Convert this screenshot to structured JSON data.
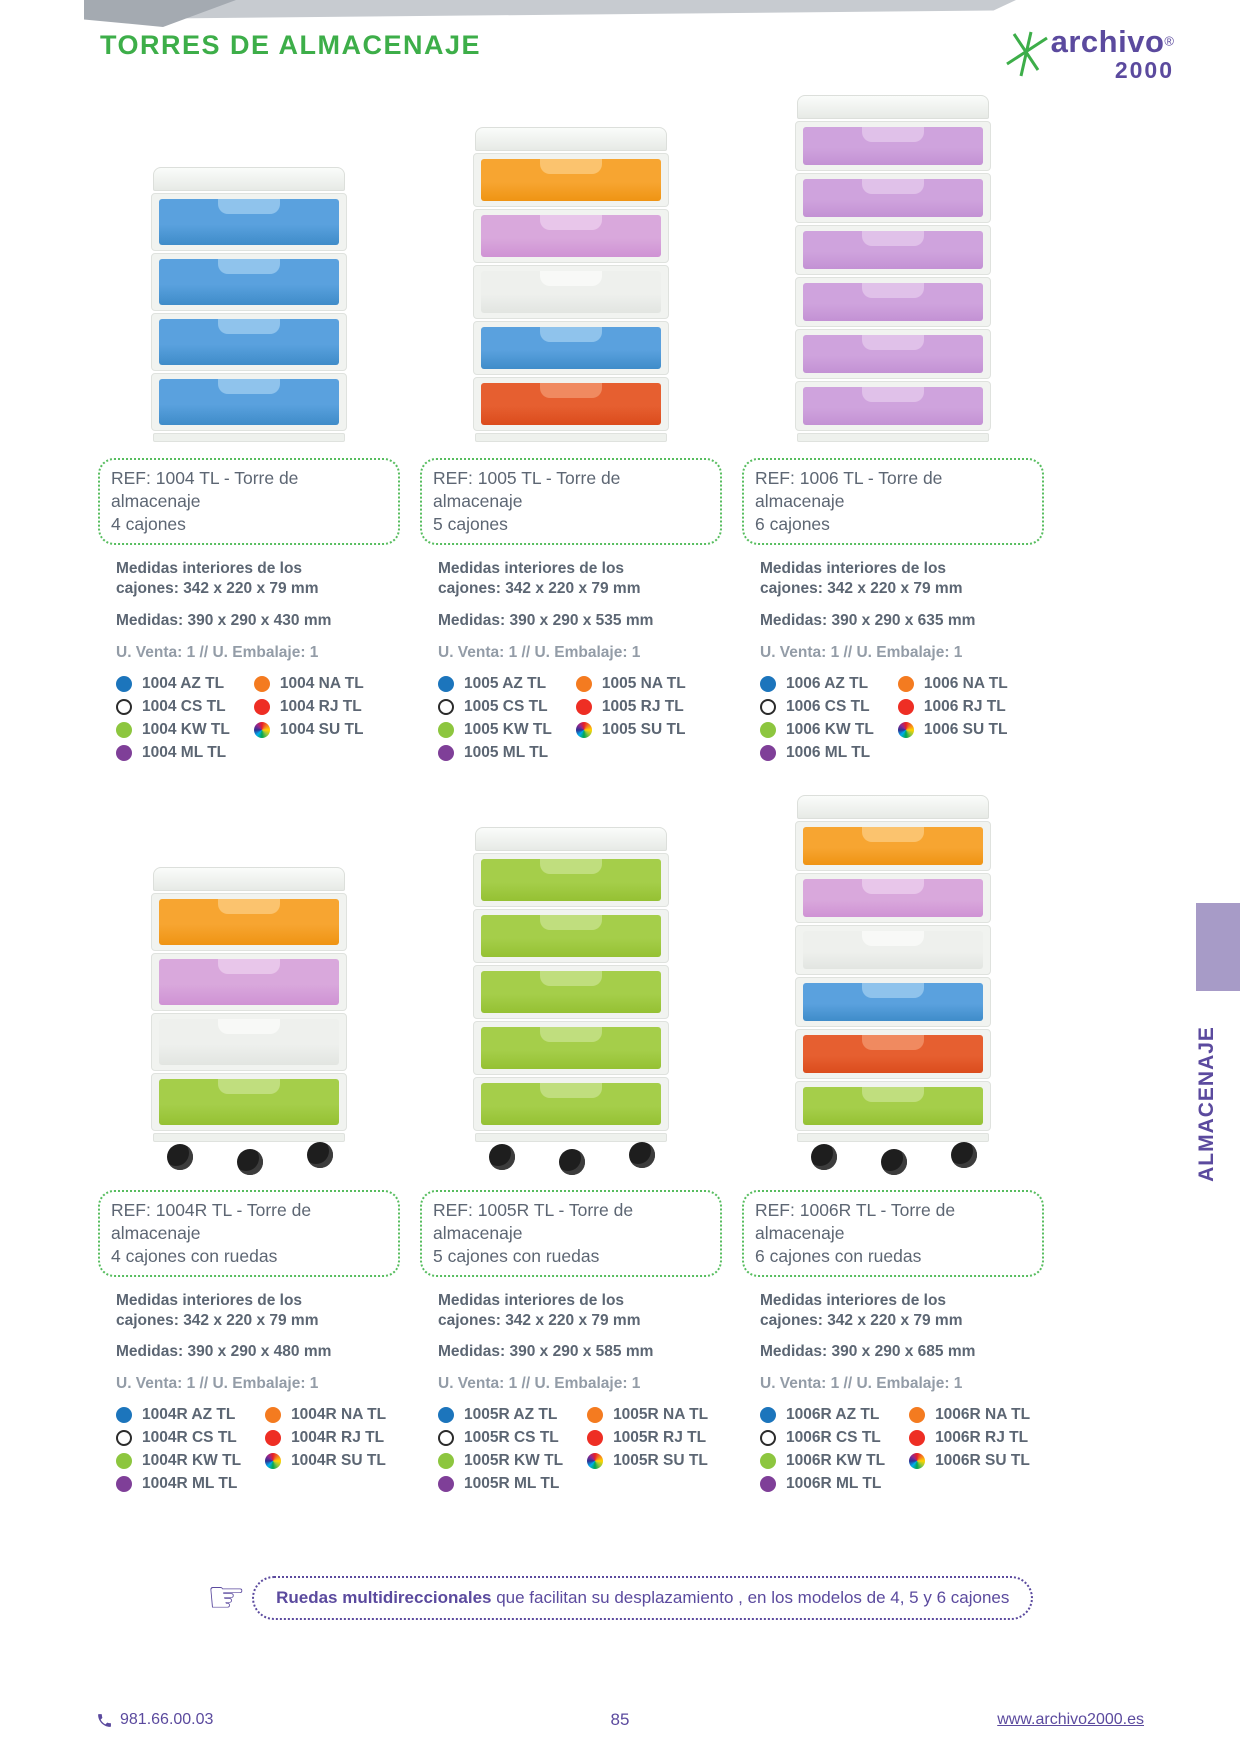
{
  "header": {
    "title": "TORRES DE ALMACENAJE",
    "logo": {
      "brand": "archivo",
      "reg": "®",
      "year": "2000"
    }
  },
  "sidebar": {
    "label": "ALMACENAJE",
    "tab_color": "#a79bc7"
  },
  "banner": {
    "bold": "Ruedas multidireccionales",
    "rest": " que facilitan su desplazamiento , en los modelos de 4, 5 y 6 cajones"
  },
  "footer": {
    "phone": "981.66.00.03",
    "page_number": "85",
    "website": "www.archivo2000.es"
  },
  "colors": {
    "accent_green": "#3dae49",
    "dotted_green": "#57bd5f",
    "brand_purple": "#5b4a9e",
    "text_slate": "#5c6673",
    "text_gray": "#939ca7",
    "tab_purple": "#a79bc7"
  },
  "swatch_colors": {
    "az": "#1c75bc",
    "cs": "outline",
    "kw": "#8dc63f",
    "ml": "#7f3f98",
    "na": "#f47b20",
    "rj": "#ee2e24",
    "su": "rainbow"
  },
  "palette": {
    "blue": {
      "main": "#5aa1de",
      "dark": "#3f8cc9",
      "handle": "#8fc3ec"
    },
    "orange": {
      "main": "#f7a531",
      "dark": "#ef9413",
      "handle": "#fbc36e"
    },
    "pink": {
      "main": "#d9a8dc",
      "dark": "#cf92d4",
      "handle": "#e8c6ea"
    },
    "clear": {
      "main": "#eef0ed",
      "dark": "#e2e5e1",
      "handle": "#f8f9f7"
    },
    "red": {
      "main": "#e65f30",
      "dark": "#db4c1d",
      "handle": "#f08a60"
    },
    "lilac": {
      "main": "#cfa3dd",
      "dark": "#c391d4",
      "handle": "#e0c1e9"
    },
    "green": {
      "main": "#a5ce4a",
      "dark": "#95c133",
      "handle": "#c0de7e"
    }
  },
  "products": [
    {
      "ref_line1": "REF: 1004 TL - Torre de almacenaje",
      "ref_line2": "4 cajones",
      "inner_line1": "Medidas interiores de los",
      "inner_line2": "cajones: 342 x 220 x 79 mm",
      "outer": "Medidas: 390 x 290 x 430 mm",
      "units": "U. Venta: 1   //   U. Embalaje: 1",
      "swatches_left": [
        {
          "code": "1004 AZ TL",
          "type": "az"
        },
        {
          "code": "1004 CS TL",
          "type": "cs"
        },
        {
          "code": "1004 KW TL",
          "type": "kw"
        },
        {
          "code": "1004 ML TL",
          "type": "ml"
        }
      ],
      "swatches_right": [
        {
          "code": "1004 NA TL",
          "type": "na"
        },
        {
          "code": "1004 RJ TL",
          "type": "rj"
        },
        {
          "code": "1004 SU TL",
          "type": "su"
        }
      ],
      "drawers": [
        "blue",
        "blue",
        "blue",
        "blue"
      ],
      "wheels": false
    },
    {
      "ref_line1": "REF: 1005 TL - Torre de almacenaje",
      "ref_line2": "5 cajones",
      "inner_line1": "Medidas interiores de los",
      "inner_line2": "cajones: 342 x 220 x 79 mm",
      "outer": "Medidas: 390 x 290 x 535 mm",
      "units": "U. Venta: 1   //   U. Embalaje: 1",
      "swatches_left": [
        {
          "code": "1005 AZ TL",
          "type": "az"
        },
        {
          "code": "1005 CS TL",
          "type": "cs"
        },
        {
          "code": "1005 KW TL",
          "type": "kw"
        },
        {
          "code": "1005 ML TL",
          "type": "ml"
        }
      ],
      "swatches_right": [
        {
          "code": "1005 NA TL",
          "type": "na"
        },
        {
          "code": "1005 RJ TL",
          "type": "rj"
        },
        {
          "code": "1005 SU TL",
          "type": "su"
        }
      ],
      "drawers": [
        "orange",
        "pink",
        "clear",
        "blue",
        "red"
      ],
      "wheels": false
    },
    {
      "ref_line1": "REF: 1006 TL - Torre de almacenaje",
      "ref_line2": "6 cajones",
      "inner_line1": "Medidas interiores de los",
      "inner_line2": "cajones: 342 x 220 x 79 mm",
      "outer": "Medidas: 390 x 290 x 635 mm",
      "units": "U. Venta: 1   //   U. Embalaje: 1",
      "swatches_left": [
        {
          "code": "1006 AZ TL",
          "type": "az"
        },
        {
          "code": "1006 CS TL",
          "type": "cs"
        },
        {
          "code": "1006 KW TL",
          "type": "kw"
        },
        {
          "code": "1006 ML TL",
          "type": "ml"
        }
      ],
      "swatches_right": [
        {
          "code": "1006 NA TL",
          "type": "na"
        },
        {
          "code": "1006 RJ TL",
          "type": "rj"
        },
        {
          "code": "1006 SU TL",
          "type": "su"
        }
      ],
      "drawers": [
        "lilac",
        "lilac",
        "lilac",
        "lilac",
        "lilac",
        "lilac"
      ],
      "wheels": false
    },
    {
      "ref_line1": "REF: 1004R TL - Torre de almacenaje",
      "ref_line2": "4 cajones con ruedas",
      "inner_line1": "Medidas interiores de los",
      "inner_line2": "cajones: 342 x 220 x 79 mm",
      "outer": "Medidas: 390 x 290 x 480 mm",
      "units": "U. Venta: 1   //   U. Embalaje: 1",
      "swatches_left": [
        {
          "code": "1004R AZ TL",
          "type": "az"
        },
        {
          "code": "1004R CS TL",
          "type": "cs"
        },
        {
          "code": "1004R KW TL",
          "type": "kw"
        },
        {
          "code": "1004R ML TL",
          "type": "ml"
        }
      ],
      "swatches_right": [
        {
          "code": "1004R NA TL",
          "type": "na"
        },
        {
          "code": "1004R RJ TL",
          "type": "rj"
        },
        {
          "code": "1004R SU TL",
          "type": "su"
        }
      ],
      "drawers": [
        "orange",
        "pink",
        "clear",
        "green"
      ],
      "wheels": true
    },
    {
      "ref_line1": "REF: 1005R TL - Torre de almacenaje",
      "ref_line2": "5 cajones con ruedas",
      "inner_line1": "Medidas interiores de los",
      "inner_line2": "cajones: 342 x 220 x 79 mm",
      "outer": "Medidas: 390 x 290 x 585 mm",
      "units": "U. Venta: 1   //   U. Embalaje: 1",
      "swatches_left": [
        {
          "code": "1005R AZ TL",
          "type": "az"
        },
        {
          "code": "1005R CS TL",
          "type": "cs"
        },
        {
          "code": "1005R KW TL",
          "type": "kw"
        },
        {
          "code": "1005R ML TL",
          "type": "ml"
        }
      ],
      "swatches_right": [
        {
          "code": "1005R NA TL",
          "type": "na"
        },
        {
          "code": "1005R RJ TL",
          "type": "rj"
        },
        {
          "code": "1005R SU TL",
          "type": "su"
        }
      ],
      "drawers": [
        "green",
        "green",
        "green",
        "green",
        "green"
      ],
      "wheels": true
    },
    {
      "ref_line1": "REF: 1006R TL - Torre de almacenaje",
      "ref_line2": "6 cajones con ruedas",
      "inner_line1": "Medidas interiores de los",
      "inner_line2": "cajones: 342 x 220 x 79 mm",
      "outer": "Medidas: 390 x 290 x 685 mm",
      "units": "U. Venta: 1   //   U. Embalaje: 1",
      "swatches_left": [
        {
          "code": "1006R AZ TL",
          "type": "az"
        },
        {
          "code": "1006R CS TL",
          "type": "cs"
        },
        {
          "code": "1006R KW TL",
          "type": "kw"
        },
        {
          "code": "1006R ML TL",
          "type": "ml"
        }
      ],
      "swatches_right": [
        {
          "code": "1006R NA TL",
          "type": "na"
        },
        {
          "code": "1006R RJ TL",
          "type": "rj"
        },
        {
          "code": "1006R SU TL",
          "type": "su"
        }
      ],
      "drawers": [
        "orange",
        "pink",
        "clear",
        "blue",
        "red",
        "green"
      ],
      "wheels": true
    }
  ]
}
